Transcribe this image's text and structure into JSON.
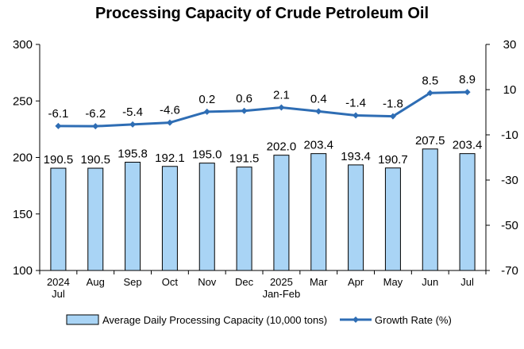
{
  "chart_data": {
    "type": "bar",
    "title": "Processing Capacity of Crude Petroleum Oil",
    "categories": [
      [
        "2024",
        "Jul"
      ],
      [
        "Aug"
      ],
      [
        "Sep"
      ],
      [
        "Oct"
      ],
      [
        "Nov"
      ],
      [
        "Dec"
      ],
      [
        "2025",
        "Jan-Feb"
      ],
      [
        "Mar"
      ],
      [
        "Apr"
      ],
      [
        "May"
      ],
      [
        "Jun"
      ],
      [
        "Jul"
      ]
    ],
    "series": [
      {
        "name": "Average Daily Processing Capacity (10,000 tons)",
        "type": "bar",
        "axis": "left",
        "values": [
          190.5,
          190.5,
          195.8,
          192.1,
          195.0,
          191.5,
          202.0,
          203.4,
          193.4,
          190.7,
          207.5,
          203.4
        ],
        "labels": [
          "190.5",
          "190.5",
          "195.8",
          "192.1",
          "195.0",
          "191.5",
          "202.0",
          "203.4",
          "193.4",
          "190.7",
          "207.5",
          "203.4"
        ],
        "color": "#a9d4f5"
      },
      {
        "name": "Growth Rate (%)",
        "type": "line",
        "axis": "right",
        "values": [
          -6.1,
          -6.2,
          -5.4,
          -4.6,
          0.2,
          0.6,
          2.1,
          0.4,
          -1.4,
          -1.8,
          8.5,
          8.9
        ],
        "labels": [
          "-6.1",
          "-6.2",
          "-5.4",
          "-4.6",
          "0.2",
          "0.6",
          "2.1",
          "0.4",
          "-1.4",
          "-1.8",
          "8.5",
          "8.9"
        ],
        "color": "#2e6db4"
      }
    ],
    "y_left": {
      "min": 100,
      "max": 300,
      "ticks": [
        "300",
        "250",
        "200",
        "150",
        "100"
      ],
      "tick_values": [
        300,
        250,
        200,
        150,
        100
      ]
    },
    "y_right": {
      "min": -70,
      "max": 30,
      "ticks": [
        "30",
        "10",
        "-10",
        "-30",
        "-50",
        "-70"
      ],
      "tick_values": [
        30,
        10,
        -10,
        -30,
        -50,
        -70
      ]
    },
    "grid": false,
    "legend_position": "bottom"
  }
}
